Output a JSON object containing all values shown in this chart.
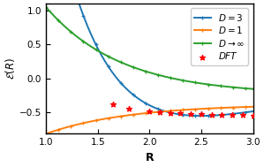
{
  "title": "",
  "xlabel": "R",
  "ylabel": "$\\mathcal{E}(R)$",
  "xlim": [
    1.0,
    3.0
  ],
  "ylim": [
    -0.82,
    1.1
  ],
  "xticks": [
    1.0,
    1.5,
    2.0,
    2.5,
    3.0
  ],
  "yticks": [
    -0.5,
    0.0,
    0.5,
    1.0
  ],
  "color_D3": "#1f77b4",
  "color_D1": "#ff7f0e",
  "color_Dinf": "#2ca02c",
  "color_DFT": "red",
  "legend_labels": [
    "$D=3$",
    "$D=1$",
    "$D\\rightarrow\\infty$",
    "$DFT$"
  ],
  "dft_x": [
    1.65,
    1.8,
    2.0,
    2.1,
    2.2,
    2.3,
    2.4,
    2.5,
    2.6,
    2.7,
    2.8,
    2.9,
    3.0
  ],
  "dft_y": [
    -0.385,
    -0.455,
    -0.495,
    -0.505,
    -0.513,
    -0.52,
    -0.527,
    -0.533,
    -0.537,
    -0.54,
    -0.543,
    -0.545,
    -0.548
  ],
  "mk_step": 18
}
